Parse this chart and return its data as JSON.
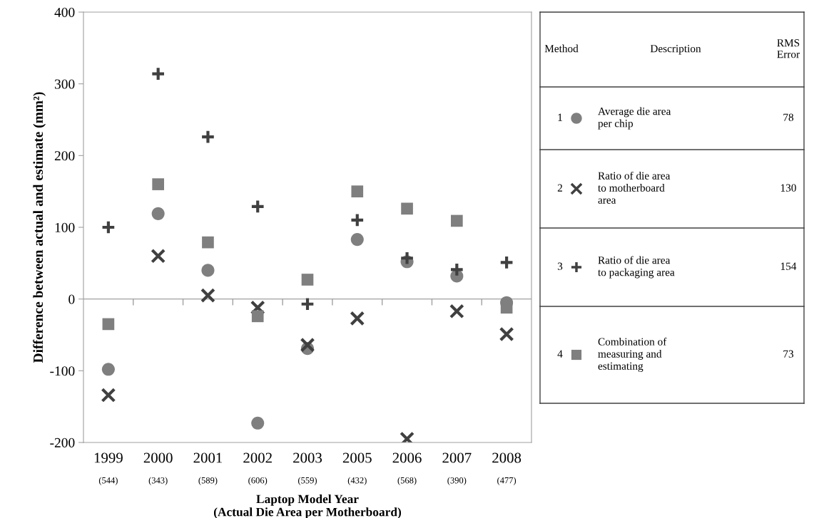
{
  "chart_data": {
    "type": "scatter",
    "ylabel": "Difference between actual and estimate (mm²)",
    "xlabel": "Laptop Model Year\n(Actual Die Area per Motherboard)",
    "categories": [
      "1999\n(544)",
      "2000\n(343)",
      "2001\n(589)",
      "2002\n(606)",
      "2003\n(559)",
      "2005\n(432)",
      "2006\n(568)",
      "2007\n(390)",
      "2008\n(477)"
    ],
    "series": [
      {
        "name": "Average die area\nper chip",
        "color": "#7f7f7f",
        "marker": "circle",
        "values": [
          -98,
          119,
          40,
          -173,
          -69,
          83,
          52,
          32,
          -5
        ]
      },
      {
        "name": "Ratio of die area\nto motherboard\narea",
        "color": "#404040",
        "marker": "cross",
        "values": [
          -134,
          60,
          5,
          -12,
          -64,
          -27,
          -195,
          -17,
          -49
        ]
      },
      {
        "name": "Ratio of die area\nto packaging area",
        "color": "#404040",
        "marker": "plus",
        "values": [
          100,
          314,
          226,
          129,
          -7,
          110,
          57,
          41,
          51
        ]
      },
      {
        "name": "Combination of\nmeasuring and\nestimating",
        "color": "#7f7f7f",
        "marker": "square",
        "values": [
          -35,
          160,
          79,
          -24,
          27,
          150,
          126,
          109,
          -12
        ]
      }
    ],
    "annotations": [
      "Method",
      "Description",
      "RMS\nError",
      "1",
      "78",
      "2",
      "130",
      "3",
      "154",
      "4",
      "73"
    ],
    "ylim": [
      -200,
      400
    ],
    "yticks": [
      -200,
      -100,
      0,
      100,
      200,
      300,
      400
    ],
    "ref_lines": [
      {
        "axis": "y",
        "value": 0,
        "color": "#a0a0a0"
      }
    ],
    "grid": false,
    "legend": "right"
  }
}
